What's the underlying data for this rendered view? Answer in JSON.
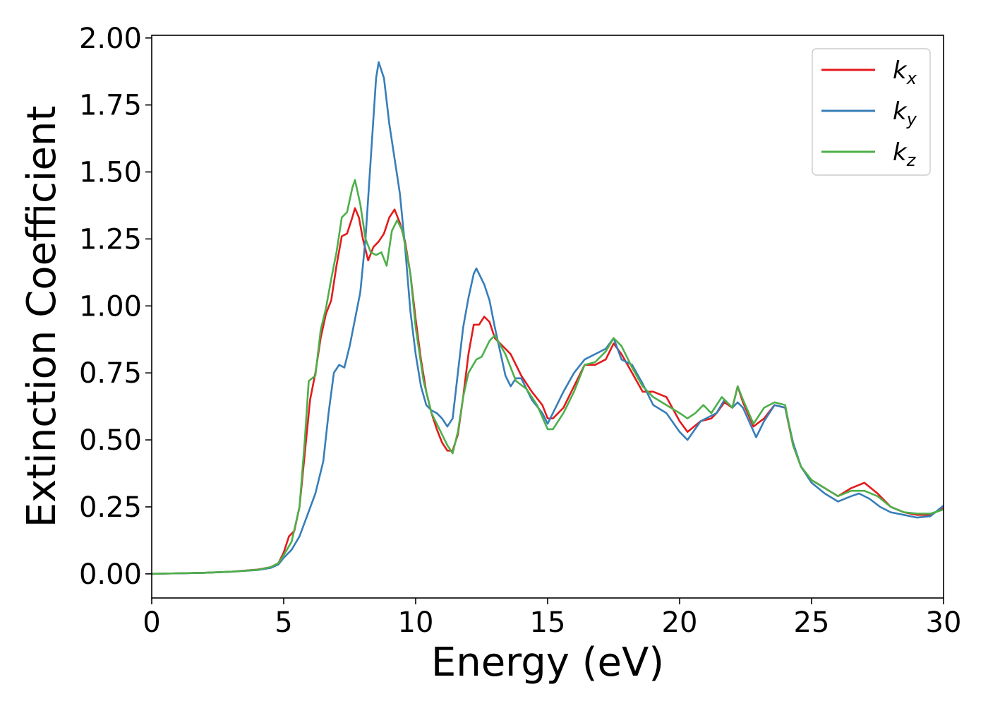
{
  "chart_data": {
    "type": "line",
    "xlabel": "Energy (eV)",
    "ylabel": "Extinction Coefficient",
    "xlim": [
      0,
      30
    ],
    "ylim": [
      -0.09,
      2.01
    ],
    "xticks": [
      "0",
      "5",
      "10",
      "15",
      "20",
      "25",
      "30"
    ],
    "yticks": [
      "0.00",
      "0.25",
      "0.50",
      "0.75",
      "1.00",
      "1.25",
      "1.50",
      "1.75",
      "2.00"
    ],
    "grid": false,
    "legend_position": "top-right",
    "series": [
      {
        "name": "k_x",
        "base": "k",
        "sub": "x",
        "color": "#e41a1c",
        "points": [
          [
            0,
            0
          ],
          [
            2,
            0.004
          ],
          [
            3,
            0.008
          ],
          [
            4,
            0.016
          ],
          [
            4.5,
            0.025
          ],
          [
            4.8,
            0.04
          ],
          [
            5.0,
            0.08
          ],
          [
            5.2,
            0.14
          ],
          [
            5.4,
            0.16
          ],
          [
            5.6,
            0.25
          ],
          [
            5.8,
            0.45
          ],
          [
            6.0,
            0.65
          ],
          [
            6.2,
            0.75
          ],
          [
            6.4,
            0.88
          ],
          [
            6.6,
            0.97
          ],
          [
            6.8,
            1.02
          ],
          [
            7.0,
            1.15
          ],
          [
            7.2,
            1.26
          ],
          [
            7.4,
            1.27
          ],
          [
            7.6,
            1.33
          ],
          [
            7.7,
            1.365
          ],
          [
            7.85,
            1.33
          ],
          [
            8.0,
            1.25
          ],
          [
            8.2,
            1.17
          ],
          [
            8.4,
            1.22
          ],
          [
            8.6,
            1.24
          ],
          [
            8.8,
            1.27
          ],
          [
            9.0,
            1.33
          ],
          [
            9.2,
            1.36
          ],
          [
            9.4,
            1.31
          ],
          [
            9.6,
            1.24
          ],
          [
            9.8,
            1.12
          ],
          [
            10.0,
            0.95
          ],
          [
            10.2,
            0.8
          ],
          [
            10.4,
            0.68
          ],
          [
            10.6,
            0.6
          ],
          [
            10.8,
            0.54
          ],
          [
            11.0,
            0.49
          ],
          [
            11.2,
            0.46
          ],
          [
            11.4,
            0.46
          ],
          [
            11.6,
            0.52
          ],
          [
            11.8,
            0.66
          ],
          [
            12.0,
            0.82
          ],
          [
            12.2,
            0.93
          ],
          [
            12.4,
            0.93
          ],
          [
            12.6,
            0.96
          ],
          [
            12.8,
            0.94
          ],
          [
            13.0,
            0.88
          ],
          [
            13.2,
            0.86
          ],
          [
            13.6,
            0.82
          ],
          [
            14.0,
            0.74
          ],
          [
            14.4,
            0.68
          ],
          [
            14.8,
            0.63
          ],
          [
            15.0,
            0.58
          ],
          [
            15.2,
            0.58
          ],
          [
            15.6,
            0.62
          ],
          [
            16.0,
            0.7
          ],
          [
            16.4,
            0.78
          ],
          [
            16.8,
            0.78
          ],
          [
            17.2,
            0.8
          ],
          [
            17.5,
            0.86
          ],
          [
            17.8,
            0.82
          ],
          [
            18.2,
            0.75
          ],
          [
            18.6,
            0.68
          ],
          [
            19.0,
            0.68
          ],
          [
            19.5,
            0.66
          ],
          [
            20.0,
            0.57
          ],
          [
            20.3,
            0.53
          ],
          [
            20.8,
            0.57
          ],
          [
            21.2,
            0.58
          ],
          [
            21.4,
            0.6
          ],
          [
            21.7,
            0.64
          ],
          [
            22.0,
            0.62
          ],
          [
            22.2,
            0.7
          ],
          [
            22.4,
            0.64
          ],
          [
            22.8,
            0.55
          ],
          [
            23.2,
            0.58
          ],
          [
            23.6,
            0.63
          ],
          [
            24.0,
            0.62
          ],
          [
            24.3,
            0.48
          ],
          [
            24.6,
            0.4
          ],
          [
            25.0,
            0.35
          ],
          [
            25.5,
            0.32
          ],
          [
            26.0,
            0.29
          ],
          [
            26.5,
            0.32
          ],
          [
            27.0,
            0.34
          ],
          [
            27.5,
            0.3
          ],
          [
            28.0,
            0.25
          ],
          [
            28.5,
            0.23
          ],
          [
            29.0,
            0.22
          ],
          [
            29.5,
            0.22
          ],
          [
            30.0,
            0.245
          ]
        ]
      },
      {
        "name": "k_y",
        "base": "k",
        "sub": "y",
        "color": "#377eb8",
        "points": [
          [
            0,
            0
          ],
          [
            2,
            0.004
          ],
          [
            3,
            0.008
          ],
          [
            4,
            0.014
          ],
          [
            4.5,
            0.022
          ],
          [
            4.8,
            0.035
          ],
          [
            5.0,
            0.06
          ],
          [
            5.3,
            0.09
          ],
          [
            5.6,
            0.14
          ],
          [
            5.9,
            0.22
          ],
          [
            6.2,
            0.3
          ],
          [
            6.5,
            0.42
          ],
          [
            6.7,
            0.6
          ],
          [
            6.9,
            0.75
          ],
          [
            7.1,
            0.78
          ],
          [
            7.3,
            0.77
          ],
          [
            7.5,
            0.85
          ],
          [
            7.7,
            0.95
          ],
          [
            7.9,
            1.05
          ],
          [
            8.1,
            1.25
          ],
          [
            8.3,
            1.55
          ],
          [
            8.5,
            1.85
          ],
          [
            8.6,
            1.91
          ],
          [
            8.8,
            1.85
          ],
          [
            9.0,
            1.68
          ],
          [
            9.2,
            1.55
          ],
          [
            9.4,
            1.42
          ],
          [
            9.6,
            1.22
          ],
          [
            9.8,
            0.98
          ],
          [
            10.0,
            0.82
          ],
          [
            10.2,
            0.7
          ],
          [
            10.4,
            0.63
          ],
          [
            10.6,
            0.61
          ],
          [
            10.8,
            0.6
          ],
          [
            11.0,
            0.58
          ],
          [
            11.2,
            0.55
          ],
          [
            11.4,
            0.58
          ],
          [
            11.6,
            0.75
          ],
          [
            11.8,
            0.92
          ],
          [
            12.0,
            1.03
          ],
          [
            12.2,
            1.12
          ],
          [
            12.3,
            1.14
          ],
          [
            12.6,
            1.08
          ],
          [
            12.8,
            1.02
          ],
          [
            13.0,
            0.92
          ],
          [
            13.4,
            0.74
          ],
          [
            13.6,
            0.7
          ],
          [
            13.8,
            0.73
          ],
          [
            14.0,
            0.73
          ],
          [
            14.4,
            0.65
          ],
          [
            14.8,
            0.6
          ],
          [
            15.0,
            0.56
          ],
          [
            15.2,
            0.6
          ],
          [
            15.6,
            0.68
          ],
          [
            16.0,
            0.75
          ],
          [
            16.4,
            0.8
          ],
          [
            16.8,
            0.82
          ],
          [
            17.2,
            0.84
          ],
          [
            17.5,
            0.88
          ],
          [
            17.8,
            0.8
          ],
          [
            18.2,
            0.78
          ],
          [
            18.6,
            0.71
          ],
          [
            19.0,
            0.63
          ],
          [
            19.5,
            0.6
          ],
          [
            20.0,
            0.53
          ],
          [
            20.3,
            0.5
          ],
          [
            20.8,
            0.57
          ],
          [
            21.2,
            0.59
          ],
          [
            21.4,
            0.6
          ],
          [
            21.7,
            0.65
          ],
          [
            22.0,
            0.62
          ],
          [
            22.2,
            0.64
          ],
          [
            22.4,
            0.62
          ],
          [
            22.9,
            0.51
          ],
          [
            23.2,
            0.57
          ],
          [
            23.6,
            0.63
          ],
          [
            24.0,
            0.62
          ],
          [
            24.3,
            0.49
          ],
          [
            24.6,
            0.4
          ],
          [
            25.0,
            0.34
          ],
          [
            25.5,
            0.3
          ],
          [
            26.0,
            0.27
          ],
          [
            26.5,
            0.29
          ],
          [
            26.8,
            0.3
          ],
          [
            27.2,
            0.28
          ],
          [
            27.6,
            0.25
          ],
          [
            28.0,
            0.23
          ],
          [
            28.5,
            0.22
          ],
          [
            29.0,
            0.21
          ],
          [
            29.5,
            0.215
          ],
          [
            30.0,
            0.255
          ]
        ]
      },
      {
        "name": "k_z",
        "base": "k",
        "sub": "z",
        "color": "#4daf4a",
        "points": [
          [
            0,
            0
          ],
          [
            2,
            0.004
          ],
          [
            3,
            0.008
          ],
          [
            4,
            0.015
          ],
          [
            4.5,
            0.025
          ],
          [
            4.8,
            0.04
          ],
          [
            5.0,
            0.07
          ],
          [
            5.3,
            0.12
          ],
          [
            5.6,
            0.25
          ],
          [
            5.8,
            0.5
          ],
          [
            5.95,
            0.72
          ],
          [
            6.2,
            0.74
          ],
          [
            6.4,
            0.91
          ],
          [
            6.6,
            0.99
          ],
          [
            6.8,
            1.1
          ],
          [
            7.0,
            1.2
          ],
          [
            7.2,
            1.33
          ],
          [
            7.4,
            1.35
          ],
          [
            7.6,
            1.44
          ],
          [
            7.7,
            1.47
          ],
          [
            7.9,
            1.38
          ],
          [
            8.1,
            1.25
          ],
          [
            8.3,
            1.2
          ],
          [
            8.5,
            1.19
          ],
          [
            8.7,
            1.2
          ],
          [
            8.9,
            1.15
          ],
          [
            9.1,
            1.28
          ],
          [
            9.3,
            1.32
          ],
          [
            9.5,
            1.28
          ],
          [
            9.8,
            1.12
          ],
          [
            10.0,
            0.92
          ],
          [
            10.3,
            0.72
          ],
          [
            10.6,
            0.6
          ],
          [
            10.9,
            0.54
          ],
          [
            11.2,
            0.48
          ],
          [
            11.4,
            0.45
          ],
          [
            11.6,
            0.53
          ],
          [
            11.8,
            0.66
          ],
          [
            12.0,
            0.75
          ],
          [
            12.3,
            0.8
          ],
          [
            12.5,
            0.81
          ],
          [
            12.8,
            0.87
          ],
          [
            13.0,
            0.89
          ],
          [
            13.4,
            0.82
          ],
          [
            13.8,
            0.72
          ],
          [
            14.2,
            0.69
          ],
          [
            14.6,
            0.63
          ],
          [
            15.0,
            0.54
          ],
          [
            15.2,
            0.54
          ],
          [
            15.6,
            0.6
          ],
          [
            16.0,
            0.68
          ],
          [
            16.4,
            0.78
          ],
          [
            16.8,
            0.79
          ],
          [
            17.2,
            0.83
          ],
          [
            17.5,
            0.88
          ],
          [
            17.8,
            0.85
          ],
          [
            18.2,
            0.77
          ],
          [
            18.6,
            0.7
          ],
          [
            19.0,
            0.66
          ],
          [
            19.5,
            0.63
          ],
          [
            20.0,
            0.6
          ],
          [
            20.3,
            0.58
          ],
          [
            20.6,
            0.6
          ],
          [
            20.9,
            0.63
          ],
          [
            21.2,
            0.6
          ],
          [
            21.6,
            0.66
          ],
          [
            22.0,
            0.62
          ],
          [
            22.2,
            0.7
          ],
          [
            22.4,
            0.65
          ],
          [
            22.8,
            0.56
          ],
          [
            23.2,
            0.62
          ],
          [
            23.6,
            0.64
          ],
          [
            24.0,
            0.63
          ],
          [
            24.3,
            0.48
          ],
          [
            24.6,
            0.4
          ],
          [
            25.0,
            0.35
          ],
          [
            25.5,
            0.32
          ],
          [
            26.0,
            0.29
          ],
          [
            26.5,
            0.31
          ],
          [
            27.0,
            0.31
          ],
          [
            27.5,
            0.29
          ],
          [
            28.0,
            0.25
          ],
          [
            28.5,
            0.23
          ],
          [
            29.0,
            0.225
          ],
          [
            29.5,
            0.225
          ],
          [
            30.0,
            0.24
          ]
        ]
      }
    ]
  }
}
